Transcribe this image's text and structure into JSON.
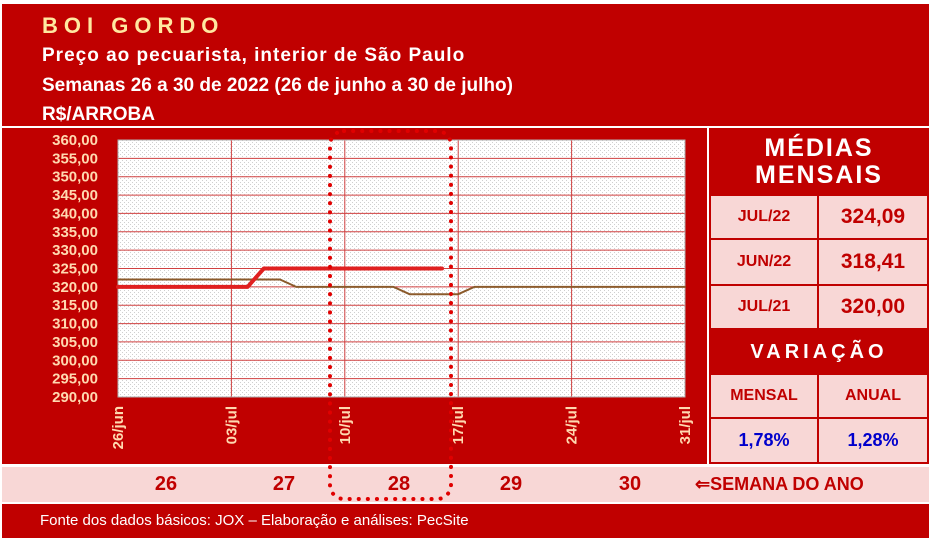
{
  "header": {
    "title": "BOI GORDO",
    "line1": "Preço ao pecuarista, interior de São Paulo",
    "line2": "Semanas 26 a 30 de 2022 (26 de junho a 30 de julho)",
    "line3": "R$/ARROBA"
  },
  "chart_data": {
    "type": "line",
    "x_tick_labels": [
      "26/jun",
      "03/jul",
      "10/jul",
      "17/jul",
      "24/jul",
      "31/jul"
    ],
    "x": [
      0,
      1,
      2,
      3,
      4,
      5,
      6,
      7,
      8,
      9,
      10,
      11,
      12,
      13,
      14,
      15,
      16,
      17,
      18,
      19,
      20,
      21,
      22,
      23,
      24,
      25,
      26,
      27,
      28,
      29,
      30,
      31,
      32,
      33,
      34,
      35
    ],
    "ylim": [
      290,
      360
    ],
    "y_ticks": [
      "360,00",
      "355,00",
      "350,00",
      "345,00",
      "340,00",
      "335,00",
      "330,00",
      "325,00",
      "320,00",
      "315,00",
      "310,00",
      "305,00",
      "300,00",
      "295,00",
      "290,00"
    ],
    "y_tick_values": [
      360,
      355,
      350,
      345,
      340,
      335,
      330,
      325,
      320,
      315,
      310,
      305,
      300,
      295,
      290
    ],
    "grid": true,
    "series": [
      {
        "color": "#e02020",
        "points": [
          [
            0,
            320
          ],
          [
            8,
            320
          ],
          [
            9,
            325
          ],
          [
            20,
            325
          ]
        ]
      },
      {
        "color": "#8b5a2b",
        "points": [
          [
            0,
            322
          ],
          [
            10,
            322
          ],
          [
            11,
            320
          ],
          [
            17,
            320
          ],
          [
            18,
            318
          ],
          [
            21,
            318
          ],
          [
            22,
            320
          ],
          [
            35,
            320
          ]
        ]
      }
    ]
  },
  "medias": {
    "title_line1": "MÉDIAS",
    "title_line2": "MENSAIS",
    "rows": [
      {
        "label": "JUL/22",
        "value": "324,09"
      },
      {
        "label": "JUN/22",
        "value": "318,41"
      },
      {
        "label": "JUL/21",
        "value": "320,00"
      }
    ]
  },
  "variacao": {
    "title": "VARIAÇÃO",
    "mensal_label": "MENSAL",
    "anual_label": "ANUAL",
    "mensal_value": "1,78%",
    "anual_value": "1,28%"
  },
  "weeks": {
    "numbers": [
      "26",
      "27",
      "28",
      "29",
      "30"
    ],
    "axis_label": "SEMANA DO ANO"
  },
  "footer": {
    "source": "Fonte dos dados básicos: JOX – Elaboração e análises: PecSite"
  },
  "colors": {
    "brand_red": "#c00000",
    "pink": "#f8d7d6",
    "title_yellow": "#ffe8a0",
    "value_blue": "#0000cc",
    "highlight_dots": "#e00000"
  }
}
